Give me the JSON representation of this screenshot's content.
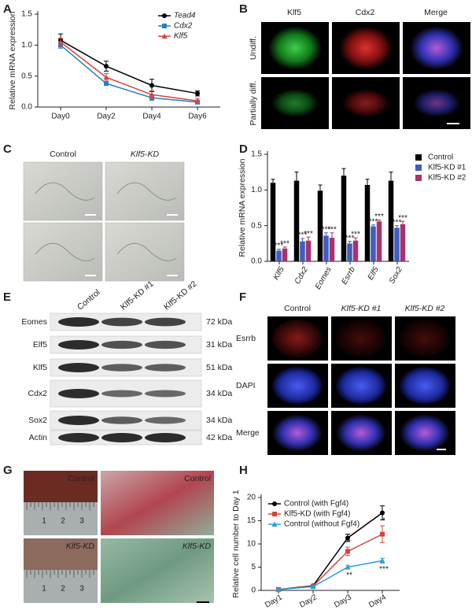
{
  "chart_data": [
    {
      "type": "line",
      "ylabel": "Relative mRNA expression",
      "categories": [
        "Day0",
        "Day2",
        "Day4",
        "Day6"
      ],
      "ylim": [
        0,
        1.5
      ],
      "yticks": [
        {
          "value": 0,
          "label": "0.0"
        },
        0.5,
        {
          "value": 1,
          "label": "1.0"
        },
        1.5
      ],
      "legend": "upper right",
      "series": [
        {
          "name": "Tead4",
          "color": "#000000",
          "marker": "circle",
          "values": [
            1.08,
            0.66,
            0.35,
            0.22
          ],
          "errors": [
            0.1,
            0.08,
            0.1,
            0.04
          ]
        },
        {
          "name": "Cdx2",
          "color": "#2a7fc1",
          "marker": "square",
          "values": [
            1.0,
            0.38,
            0.15,
            0.08
          ],
          "errors": [
            0.05,
            0.03,
            0.04,
            0.03
          ]
        },
        {
          "name": "Klf5",
          "color": "#d6453d",
          "marker": "triangle",
          "values": [
            1.05,
            0.48,
            0.2,
            0.1
          ],
          "errors": [
            0.06,
            0.06,
            0.06,
            0.04
          ]
        }
      ]
    },
    {
      "type": "bar",
      "ylabel": "Relative mRNA expression",
      "categories": [
        "Klf5",
        "Cdx2",
        "Eomes",
        "Esrrb",
        "Elf5",
        "Sox2"
      ],
      "ylim": [
        0,
        1.5
      ],
      "yticks": [
        {
          "value": 0,
          "label": "0.0"
        },
        0.5,
        {
          "value": 1,
          "label": "1.0"
        },
        1.5
      ],
      "legend": "upper right",
      "series": [
        {
          "name": "Control",
          "color": "#000000",
          "values": [
            1.1,
            1.13,
            0.99,
            1.2,
            1.07,
            1.13
          ],
          "errors": [
            0.05,
            0.12,
            0.08,
            0.1,
            0.08,
            0.12
          ],
          "sig": [
            null,
            null,
            null,
            null,
            null,
            null
          ]
        },
        {
          "name": "Klf5-KD #1",
          "color": "#3e5fbf",
          "values": [
            0.15,
            0.28,
            0.36,
            0.25,
            0.49,
            0.47
          ],
          "errors": [
            0.02,
            0.04,
            0.04,
            0.03,
            0.02,
            0.03
          ],
          "sig": [
            "***",
            "***",
            "***",
            "***",
            "***",
            "***"
          ]
        },
        {
          "name": "Klf5-KD #2",
          "color": "#a8336b",
          "values": [
            0.18,
            0.29,
            0.33,
            0.29,
            0.56,
            0.52
          ],
          "errors": [
            0.02,
            0.05,
            0.07,
            0.04,
            0.02,
            0.04
          ],
          "sig": [
            "***",
            "***",
            "***",
            "***",
            "***",
            "***"
          ]
        }
      ]
    },
    {
      "type": "line",
      "ylabel": "Relative cell number to Day 1",
      "categories": [
        "Day1",
        "Day2",
        "Day3",
        "Day4"
      ],
      "ylim": [
        0,
        20
      ],
      "yticks": [
        0,
        5,
        10,
        15,
        20
      ],
      "legend": "upper left",
      "series": [
        {
          "name": "Control (with Fgf4)",
          "color": "#000000",
          "marker": "circle",
          "values": [
            0.2,
            1.0,
            11.3,
            16.7
          ],
          "errors": [
            0.1,
            0.2,
            0.8,
            1.5
          ],
          "sig": [
            null,
            null,
            null,
            null
          ]
        },
        {
          "name": "Klf5-KD (with Fgf4)",
          "color": "#d6453d",
          "marker": "square",
          "values": [
            0.2,
            0.9,
            8.4,
            12.1
          ],
          "errors": [
            0.1,
            0.2,
            0.9,
            1.8
          ],
          "sig": [
            null,
            null,
            "*",
            "*"
          ]
        },
        {
          "name": "Control (without Fgf4)",
          "color": "#2a9fd6",
          "marker": "triangle",
          "values": [
            0.2,
            0.8,
            5.0,
            6.4
          ],
          "errors": [
            0.1,
            0.1,
            0.4,
            0.5
          ],
          "sig": [
            null,
            null,
            "**",
            "***"
          ]
        }
      ]
    }
  ],
  "figure": {
    "panel_letters": [
      "A",
      "B",
      "C",
      "D",
      "E",
      "F",
      "G",
      "H"
    ],
    "B": {
      "columns": [
        "Klf5",
        "Cdx2",
        "Merge"
      ],
      "rows": [
        "Undiff.",
        "Partially diff."
      ]
    },
    "C": {
      "columns": [
        "Control",
        "Klf5-KD"
      ]
    },
    "E": {
      "lanes": [
        "Control",
        "Klf5-KD #1",
        "Klf5-KD #2"
      ],
      "rows": [
        {
          "protein": "Eomes",
          "size": "72 kDa"
        },
        {
          "protein": "Elf5",
          "size": "31 kDa"
        },
        {
          "protein": "Klf5",
          "size": "51 kDa"
        },
        {
          "protein": "Cdx2",
          "size": "34 kDa"
        },
        {
          "protein": "Sox2",
          "size": "34 kDa"
        },
        {
          "protein": "Actin",
          "size": "42 kDa"
        }
      ]
    },
    "F": {
      "columns": [
        "Control",
        "Klf5-KD #1",
        "Klf5-KD #2"
      ],
      "rows": [
        "Esrrb",
        "DAPI",
        "Merge"
      ]
    },
    "G": {
      "labels": [
        "Control",
        "Control",
        "Klf5-KD",
        "Klf5-KD"
      ],
      "ruler": [
        "1",
        "2",
        "3"
      ]
    }
  }
}
